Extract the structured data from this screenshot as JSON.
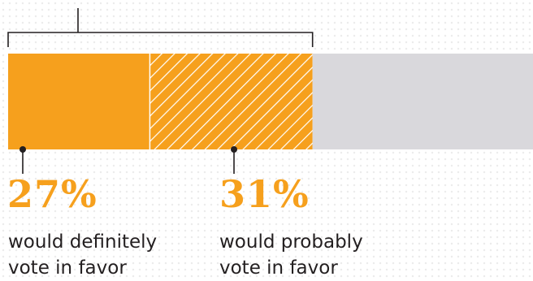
{
  "chart_data": {
    "type": "bar",
    "orientation": "horizontal-stacked",
    "max": 100,
    "segments": [
      {
        "key": "definitely",
        "value": 27,
        "color": "#f6a01d",
        "pattern": "solid"
      },
      {
        "key": "probably",
        "value": 31,
        "color": "#f6a01d",
        "pattern": "diagonal-hatch"
      },
      {
        "key": "remainder",
        "value": 42,
        "color": "#d9d8dc",
        "pattern": "solid"
      }
    ],
    "bracket_spans": [
      "definitely",
      "probably"
    ],
    "annotations": [
      {
        "segment": "definitely",
        "value_label": "27%",
        "line1": "would definitely",
        "line2": "vote in favor"
      },
      {
        "segment": "probably",
        "value_label": "31%",
        "line1": "would probably",
        "line2": "vote in favor"
      }
    ]
  }
}
